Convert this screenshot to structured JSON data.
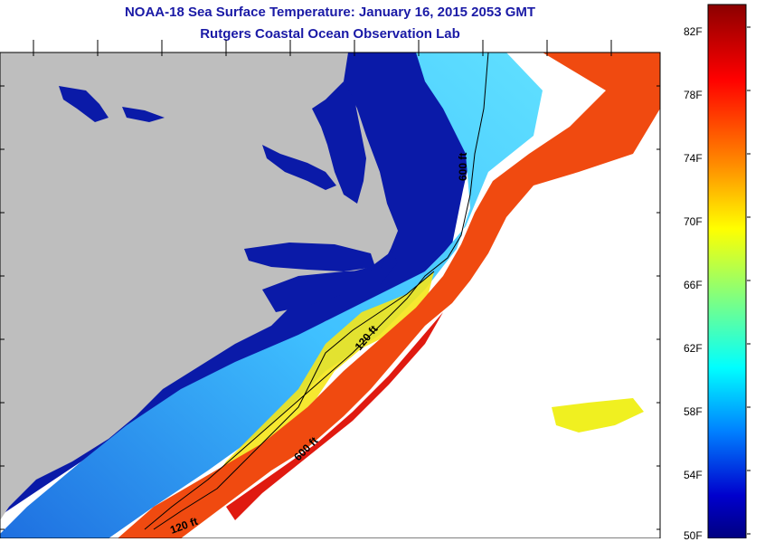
{
  "title": "NOAA-18 Sea Surface Temperature:  January 16, 2015 2053 GMT",
  "subtitle": "Rutgers Coastal Ocean Observation Lab",
  "contour_labels": [
    "600 ft",
    "120 ft",
    "600 ft",
    "120 ft"
  ],
  "colorbar": {
    "labels": [
      "82F",
      "78F",
      "74F",
      "70F",
      "66F",
      "62F",
      "58F",
      "54F",
      "50F"
    ],
    "colors": [
      "#8b0000",
      "#ff0000",
      "#ff8c00",
      "#ffff00",
      "#80ff80",
      "#00ffff",
      "#0080ff",
      "#0000cd",
      "#000080"
    ]
  },
  "colors": {
    "land": "#bebebe",
    "coastal_water": "#0a1aa8",
    "warm_current": "#f04a10",
    "title": "#1a1aa6"
  }
}
